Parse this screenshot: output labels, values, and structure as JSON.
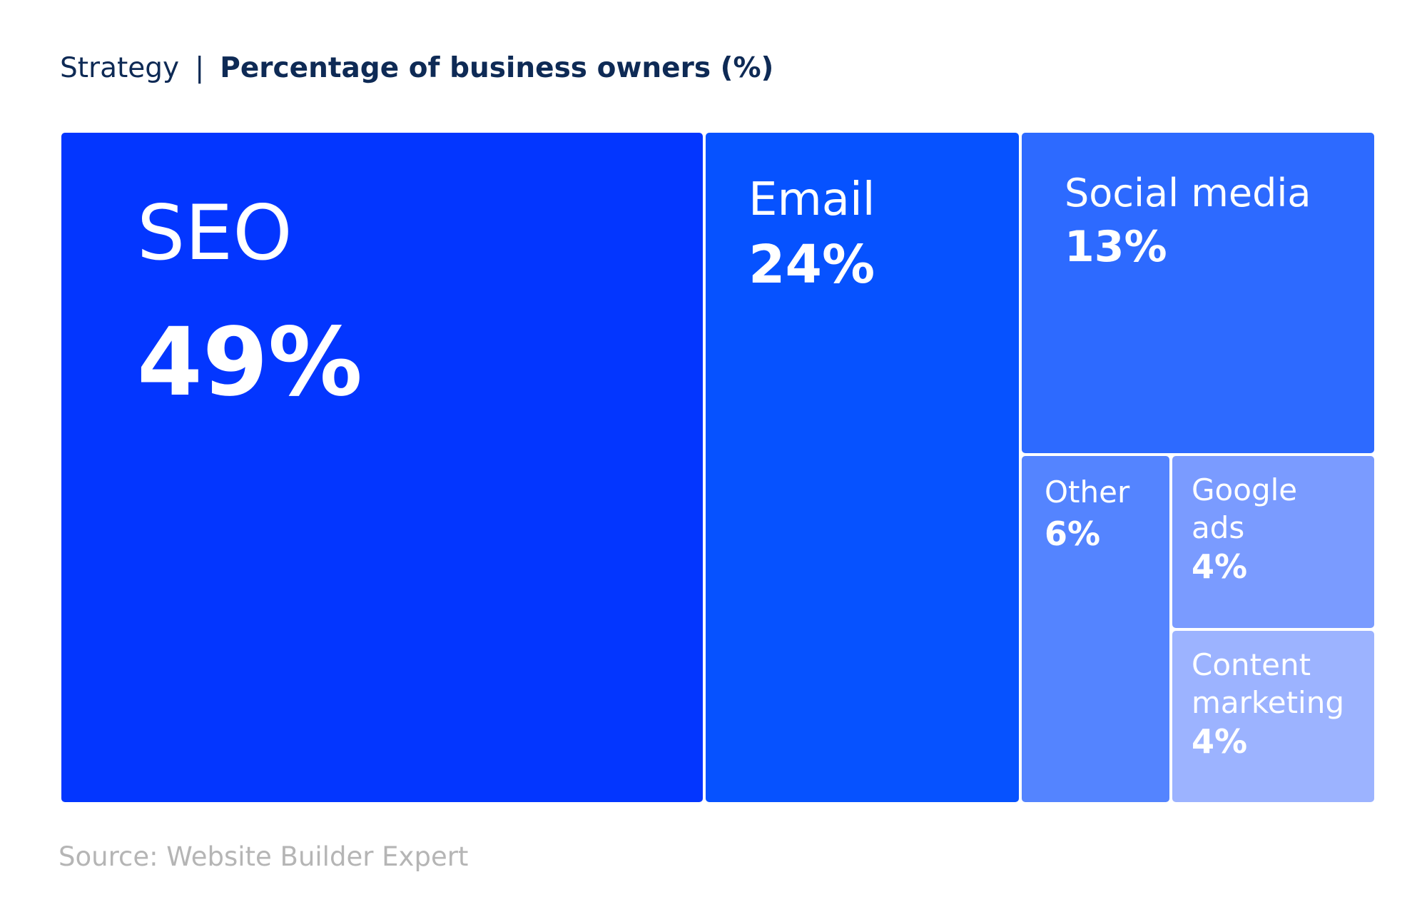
{
  "header": {
    "dimension": "Strategy",
    "separator": "|",
    "metric": "Percentage of business owners (%)"
  },
  "chart_data": {
    "type": "treemap",
    "title": "Percentage of business owners (%)",
    "dimension_label": "Strategy",
    "items": [
      {
        "name": "SEO",
        "value": 49,
        "value_label": "49%",
        "color": "#0336ff"
      },
      {
        "name": "Email",
        "value": 24,
        "value_label": "24%",
        "color": "#0652ff"
      },
      {
        "name": "Social media",
        "value": 13,
        "value_label": "13%",
        "color": "#2d6aff"
      },
      {
        "name": "Other",
        "value": 6,
        "value_label": "6%",
        "color": "#5484ff"
      },
      {
        "name": "Google\nads",
        "value": 4,
        "value_label": "4%",
        "color": "#7a9bff"
      },
      {
        "name": "Content\nmarketing",
        "value": 4,
        "value_label": "4%",
        "color": "#9cb3ff"
      }
    ]
  },
  "source": "Source: Website Builder Expert"
}
